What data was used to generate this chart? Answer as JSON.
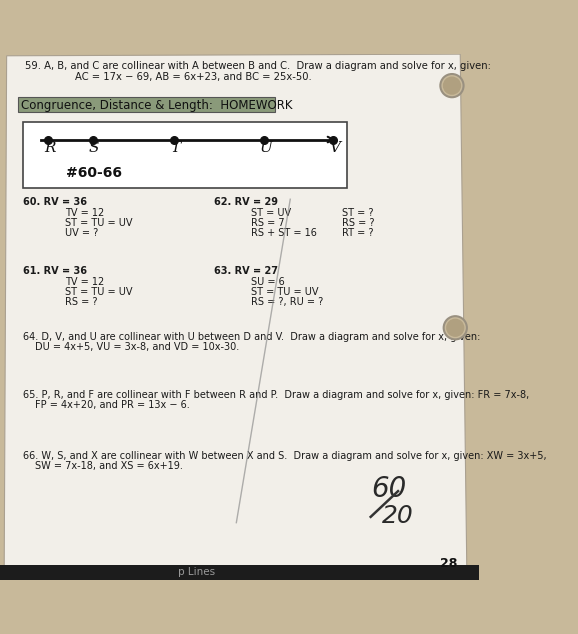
{
  "bg_color": "#c8b99a",
  "paper_color": "#f2efe9",
  "title_59a": "59. A, B, and C are collinear with A between B and C.  Draw a diagram and solve for x, given:",
  "title_59b": "AC = 17x − 69, AB = 6x+23, and BC = 25x-50.",
  "section_title": "Congruence, Distance & Length:  HOMEWORK",
  "number_label": "#60-66",
  "points": [
    "R",
    "S",
    "T",
    "U",
    "V"
  ],
  "prob60_title": "60. RV = 36",
  "prob60_lines": [
    "TV = 12",
    "ST = TU = UV",
    "UV = ?"
  ],
  "prob61_title": "61. RV = 36",
  "prob61_lines": [
    "TV = 12",
    "ST = TU = UV",
    "RS = ?"
  ],
  "prob62_title": "62. RV = 29",
  "prob62_col1": [
    "ST = UV",
    "RS = 7",
    "RS + ST = 16"
  ],
  "prob62_col2": [
    "ST = ?",
    "RS = ?",
    "RT = ?"
  ],
  "prob63_title": "63. RV = 27",
  "prob63_lines": [
    "SU = 6",
    "ST = TU = UV",
    "RS = ?, RU = ?"
  ],
  "prob64a": "64. D, V, and U are collinear with U between D and V.  Draw a diagram and solve for x, given:",
  "prob64b": "DU = 4x+5, VU = 3x-8, and VD = 10x-30.",
  "prob65a": "65. P, R, and F are collinear with F between R and P.  Draw a diagram and solve for x, given: FR = 7x-8,",
  "prob65b": "FP = 4x+20, and PR = 13x − 6.",
  "prob66a": "66. W, S, and X are collinear with W between X and S.  Draw a diagram and solve for x, given: XW = 3x+5,",
  "prob66b": "SW = 7x-18, and XS = 6x+19.",
  "page_num": "28",
  "score_num": "60",
  "score_den": "20"
}
